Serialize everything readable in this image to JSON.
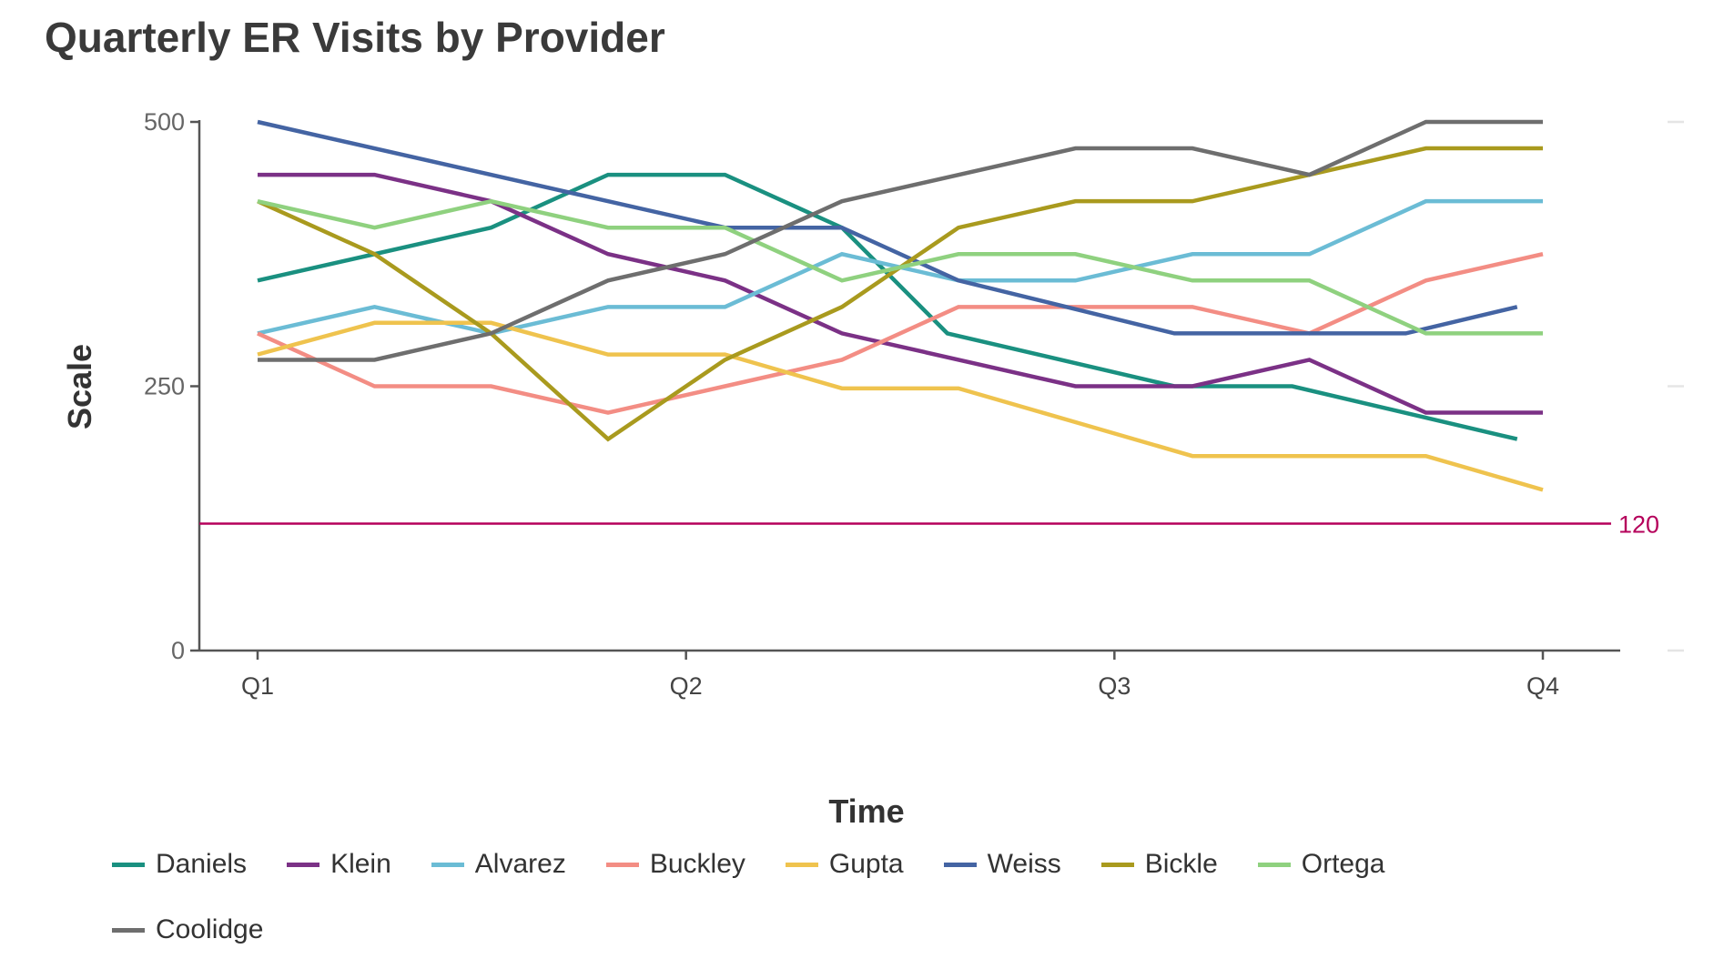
{
  "chart_data": {
    "type": "line",
    "title": "Quarterly ER Visits by Provider",
    "xlabel": "Time",
    "ylabel": "Scale",
    "x_ticks": [
      "Q1",
      "Q2",
      "Q3",
      "Q4"
    ],
    "y_ticks": [
      "0",
      "250",
      "500"
    ],
    "ylim": [
      0,
      500
    ],
    "grid": false,
    "legend_placement": "bottom",
    "reference_line": {
      "value": 120,
      "label": "120",
      "color": "#b5005b"
    },
    "series": [
      {
        "name": "Daniels",
        "color": "#1a9080",
        "x": [
          1,
          1.273,
          1.545,
          1.818,
          2.091,
          2.364,
          2.61,
          3.14,
          3.415,
          3.94
        ],
        "values": [
          350,
          375,
          400,
          450,
          450,
          400,
          300,
          250,
          250,
          200
        ]
      },
      {
        "name": "Klein",
        "color": "#7b3186",
        "x": [
          1,
          1.273,
          1.545,
          1.818,
          2.091,
          2.364,
          2.909,
          3.182,
          3.455,
          3.727,
          4
        ],
        "values": [
          450,
          450,
          425,
          375,
          350,
          300,
          250,
          250,
          275,
          225,
          225
        ]
      },
      {
        "name": "Alvarez",
        "color": "#6bbcd5",
        "x": [
          1,
          1.273,
          1.545,
          1.818,
          2.091,
          2.364,
          2.636,
          2.909,
          3.182,
          3.455,
          3.727,
          4
        ],
        "values": [
          300,
          325,
          300,
          325,
          325,
          375,
          350,
          350,
          375,
          375,
          425,
          425
        ]
      },
      {
        "name": "Buckley",
        "color": "#f38d84",
        "x": [
          1,
          1.273,
          1.545,
          1.818,
          2.091,
          2.364,
          2.636,
          2.909,
          3.182,
          3.455,
          3.727,
          4
        ],
        "values": [
          300,
          250,
          250,
          225,
          250,
          275,
          325,
          325,
          325,
          300,
          350,
          375
        ]
      },
      {
        "name": "Gupta",
        "color": "#efc34e",
        "x": [
          1,
          1.273,
          1.545,
          1.818,
          2.091,
          2.364,
          2.636,
          2.909,
          3.182,
          3.455,
          3.727,
          4
        ],
        "values": [
          280,
          310,
          310,
          280,
          280,
          248,
          248,
          216,
          184,
          184,
          184,
          152
        ]
      },
      {
        "name": "Weiss",
        "color": "#4464a3",
        "x": [
          1,
          2.091,
          2.364,
          2.636,
          3.14,
          3.68,
          3.94
        ],
        "values": [
          500,
          400,
          400,
          350,
          300,
          300,
          325
        ]
      },
      {
        "name": "Bickle",
        "color": "#a99a1e",
        "x": [
          1,
          1.273,
          1.545,
          1.818,
          2.091,
          2.364,
          2.636,
          2.909,
          3.182,
          3.455,
          3.727,
          4
        ],
        "values": [
          425,
          375,
          300,
          200,
          275,
          325,
          400,
          425,
          425,
          450,
          475,
          475
        ]
      },
      {
        "name": "Ortega",
        "color": "#8fd17f",
        "x": [
          1,
          1.273,
          1.545,
          1.818,
          2.091,
          2.364,
          2.636,
          2.909,
          3.182,
          3.455,
          3.727,
          4
        ],
        "values": [
          425,
          400,
          425,
          400,
          400,
          350,
          375,
          375,
          350,
          350,
          300,
          300
        ]
      },
      {
        "name": "Coolidge",
        "color": "#6e6e6e",
        "x": [
          1,
          1.273,
          1.545,
          1.818,
          2.091,
          2.364,
          2.909,
          3.182,
          3.455,
          3.727,
          4
        ],
        "values": [
          275,
          275,
          300,
          350,
          375,
          425,
          475,
          475,
          450,
          500,
          500
        ]
      }
    ]
  }
}
